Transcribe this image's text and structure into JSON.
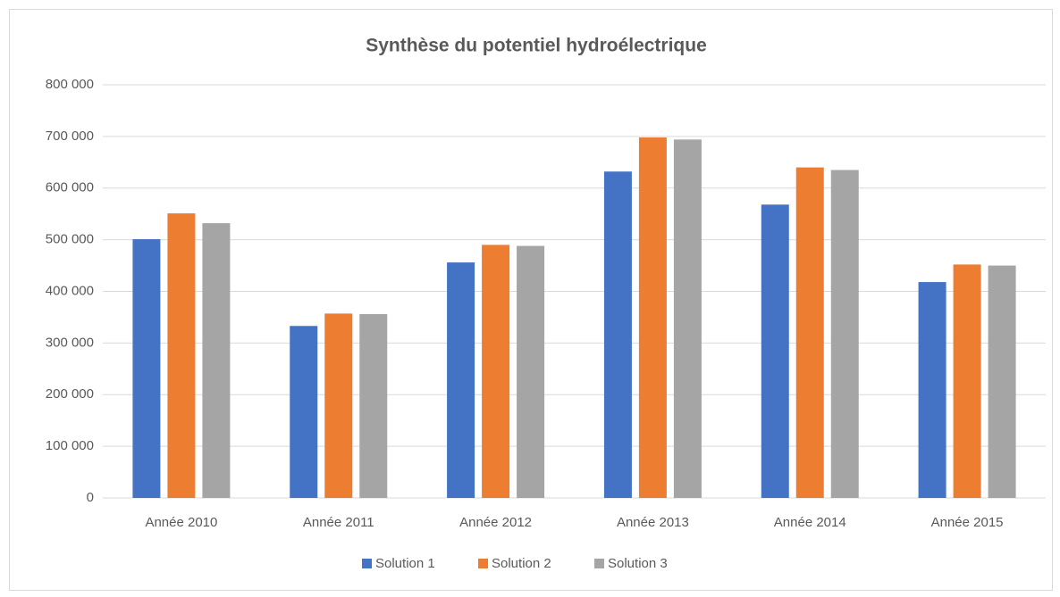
{
  "chart_data": {
    "type": "bar",
    "title": "Synthèse du potentiel hydroélectrique",
    "categories": [
      "Année 2010",
      "Année 2011",
      "Année 2012",
      "Année 2013",
      "Année 2014",
      "Année 2015"
    ],
    "series": [
      {
        "name": "Solution 1",
        "color": "#4472c4",
        "values": [
          501000,
          333000,
          456000,
          632000,
          568000,
          418000
        ]
      },
      {
        "name": "Solution 2",
        "color": "#ed7d31",
        "values": [
          551000,
          357000,
          490000,
          698000,
          640000,
          452000
        ]
      },
      {
        "name": "Solution 3",
        "color": "#a5a5a5",
        "values": [
          532000,
          356000,
          488000,
          694000,
          635000,
          450000
        ]
      }
    ],
    "ylim": [
      0,
      800000
    ],
    "yticks": [
      0,
      {
        "value": 100000,
        "label": "100 000"
      },
      {
        "value": 200000,
        "label": "200 000"
      },
      {
        "value": 300000,
        "label": "300 000"
      },
      {
        "value": 400000,
        "label": "400 000"
      },
      {
        "value": 500000,
        "label": "500 000"
      },
      {
        "value": 600000,
        "label": "600 000"
      },
      {
        "value": 700000,
        "label": "700 000"
      },
      {
        "value": 800000,
        "label": "800 000"
      }
    ],
    "grid": true,
    "legend": "bottom"
  }
}
